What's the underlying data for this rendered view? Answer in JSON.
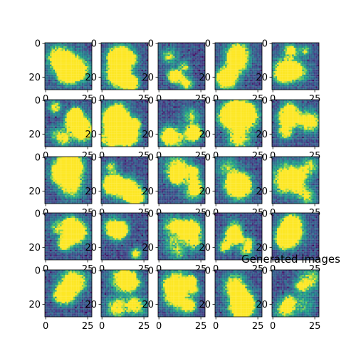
{
  "chart_data": {
    "type": "heatmap",
    "title": "Generated images",
    "grid_rows": 5,
    "grid_cols": 5,
    "image_size": [
      28,
      28
    ],
    "colormap": "viridis",
    "x_ticks": [
      0,
      25
    ],
    "y_ticks": [
      0,
      20
    ],
    "x_tick_labels": [
      "0",
      "25"
    ],
    "y_tick_labels": [
      "0",
      "20"
    ],
    "xlim": [
      -0.5,
      27.5
    ],
    "ylim": [
      27.5,
      -0.5
    ],
    "grid": false,
    "colors": {
      "viridis_low": "#440154",
      "viridis_mid": "#21918c",
      "viridis_high": "#fde725"
    }
  }
}
